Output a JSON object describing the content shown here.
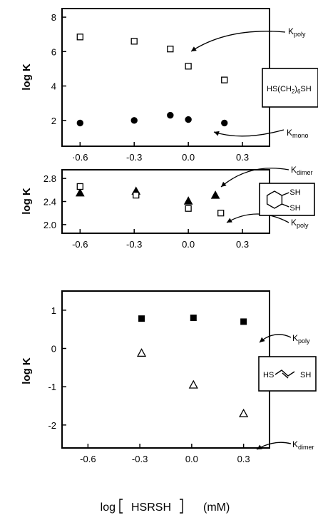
{
  "chart_data": [
    {
      "type": "scatter",
      "ylabel": "log K",
      "xlim": [
        -0.7,
        0.45
      ],
      "ylim": [
        0.5,
        8.5
      ],
      "xticks": [
        -0.6,
        -0.3,
        0.0,
        0.3
      ],
      "xtick_labels": [
        "·0.6",
        "-0.3",
        "0.0",
        "0.3"
      ],
      "yticks": [
        2,
        4,
        6,
        8
      ],
      "ytick_labels": [
        "2",
        "4",
        "6",
        "8"
      ],
      "compound": "HS(CH2)6SH",
      "series": [
        {
          "name": "K_poly",
          "marker": "open-square",
          "x": [
            -0.6,
            -0.3,
            -0.1,
            0.0,
            0.2
          ],
          "y": [
            6.85,
            6.6,
            6.15,
            5.15,
            4.35
          ]
        },
        {
          "name": "K_mono",
          "marker": "filled-circle",
          "x": [
            -0.6,
            -0.3,
            -0.1,
            0.0,
            0.2
          ],
          "y": [
            1.85,
            2.0,
            2.3,
            2.05,
            1.85
          ]
        }
      ],
      "annotations": [
        {
          "main": "K",
          "sub": "poly"
        },
        {
          "main": "K",
          "sub": "mono"
        }
      ]
    },
    {
      "type": "scatter",
      "ylabel": "log K",
      "xlim": [
        -0.7,
        0.45
      ],
      "ylim": [
        1.85,
        2.95
      ],
      "xticks": [
        -0.6,
        -0.3,
        0.0,
        0.3
      ],
      "xtick_labels": [
        "-0.6",
        "-0.3",
        "0.0",
        "0.3"
      ],
      "yticks": [
        2.0,
        2.4,
        2.8
      ],
      "ytick_labels": [
        "2.0",
        "2.4",
        "2.8"
      ],
      "compound": "trans-1,2-cyclohexanedithiol",
      "series": [
        {
          "name": "K_dimer",
          "marker": "filled-triangle",
          "x": [
            -0.6,
            -0.29,
            0.0,
            0.15
          ],
          "y": [
            2.55,
            2.58,
            2.41,
            2.51
          ]
        },
        {
          "name": "K_poly",
          "marker": "open-square",
          "x": [
            -0.6,
            -0.29,
            0.0,
            0.18
          ],
          "y": [
            2.66,
            2.51,
            2.28,
            2.2
          ]
        }
      ],
      "annotations": [
        {
          "main": "K",
          "sub": "dimer"
        },
        {
          "main": "K",
          "sub": "poly"
        }
      ],
      "structure_labels": [
        "SH",
        "SH"
      ]
    },
    {
      "type": "scatter",
      "ylabel": "log K",
      "xlabel": "log [HSRSH] (mM)",
      "xlim": [
        -0.75,
        0.45
      ],
      "ylim": [
        -2.6,
        1.5
      ],
      "xticks": [
        -0.6,
        -0.3,
        0.0,
        0.3
      ],
      "xtick_labels": [
        "-0.6",
        "-0.3",
        "0.0",
        "0.3"
      ],
      "yticks": [
        -2,
        -1,
        0,
        1
      ],
      "ytick_labels": [
        "-2",
        "-1",
        "0",
        "1"
      ],
      "compound": "HS-CH2-CH=CH-CH2-SH",
      "series": [
        {
          "name": "K_poly",
          "marker": "filled-square",
          "x": [
            -0.29,
            0.01,
            0.3
          ],
          "y": [
            0.78,
            0.8,
            0.7
          ]
        },
        {
          "name": "K_dimer",
          "marker": "open-triangle",
          "x": [
            -0.29,
            0.01,
            0.3
          ],
          "y": [
            -0.12,
            -0.95,
            -1.7
          ]
        }
      ],
      "annotations": [
        {
          "main": "K",
          "sub": "poly"
        },
        {
          "main": "K",
          "sub": "dimer"
        }
      ],
      "structure_labels": [
        "HS",
        "SH"
      ]
    }
  ],
  "panel1_box": {
    "a": "HS(CH",
    "b": "2",
    "c": ")",
    "d": "6",
    "e": "SH"
  },
  "xlabel_parts": {
    "log": "log",
    "inner": "HSRSH",
    "unit": "(mM)"
  }
}
